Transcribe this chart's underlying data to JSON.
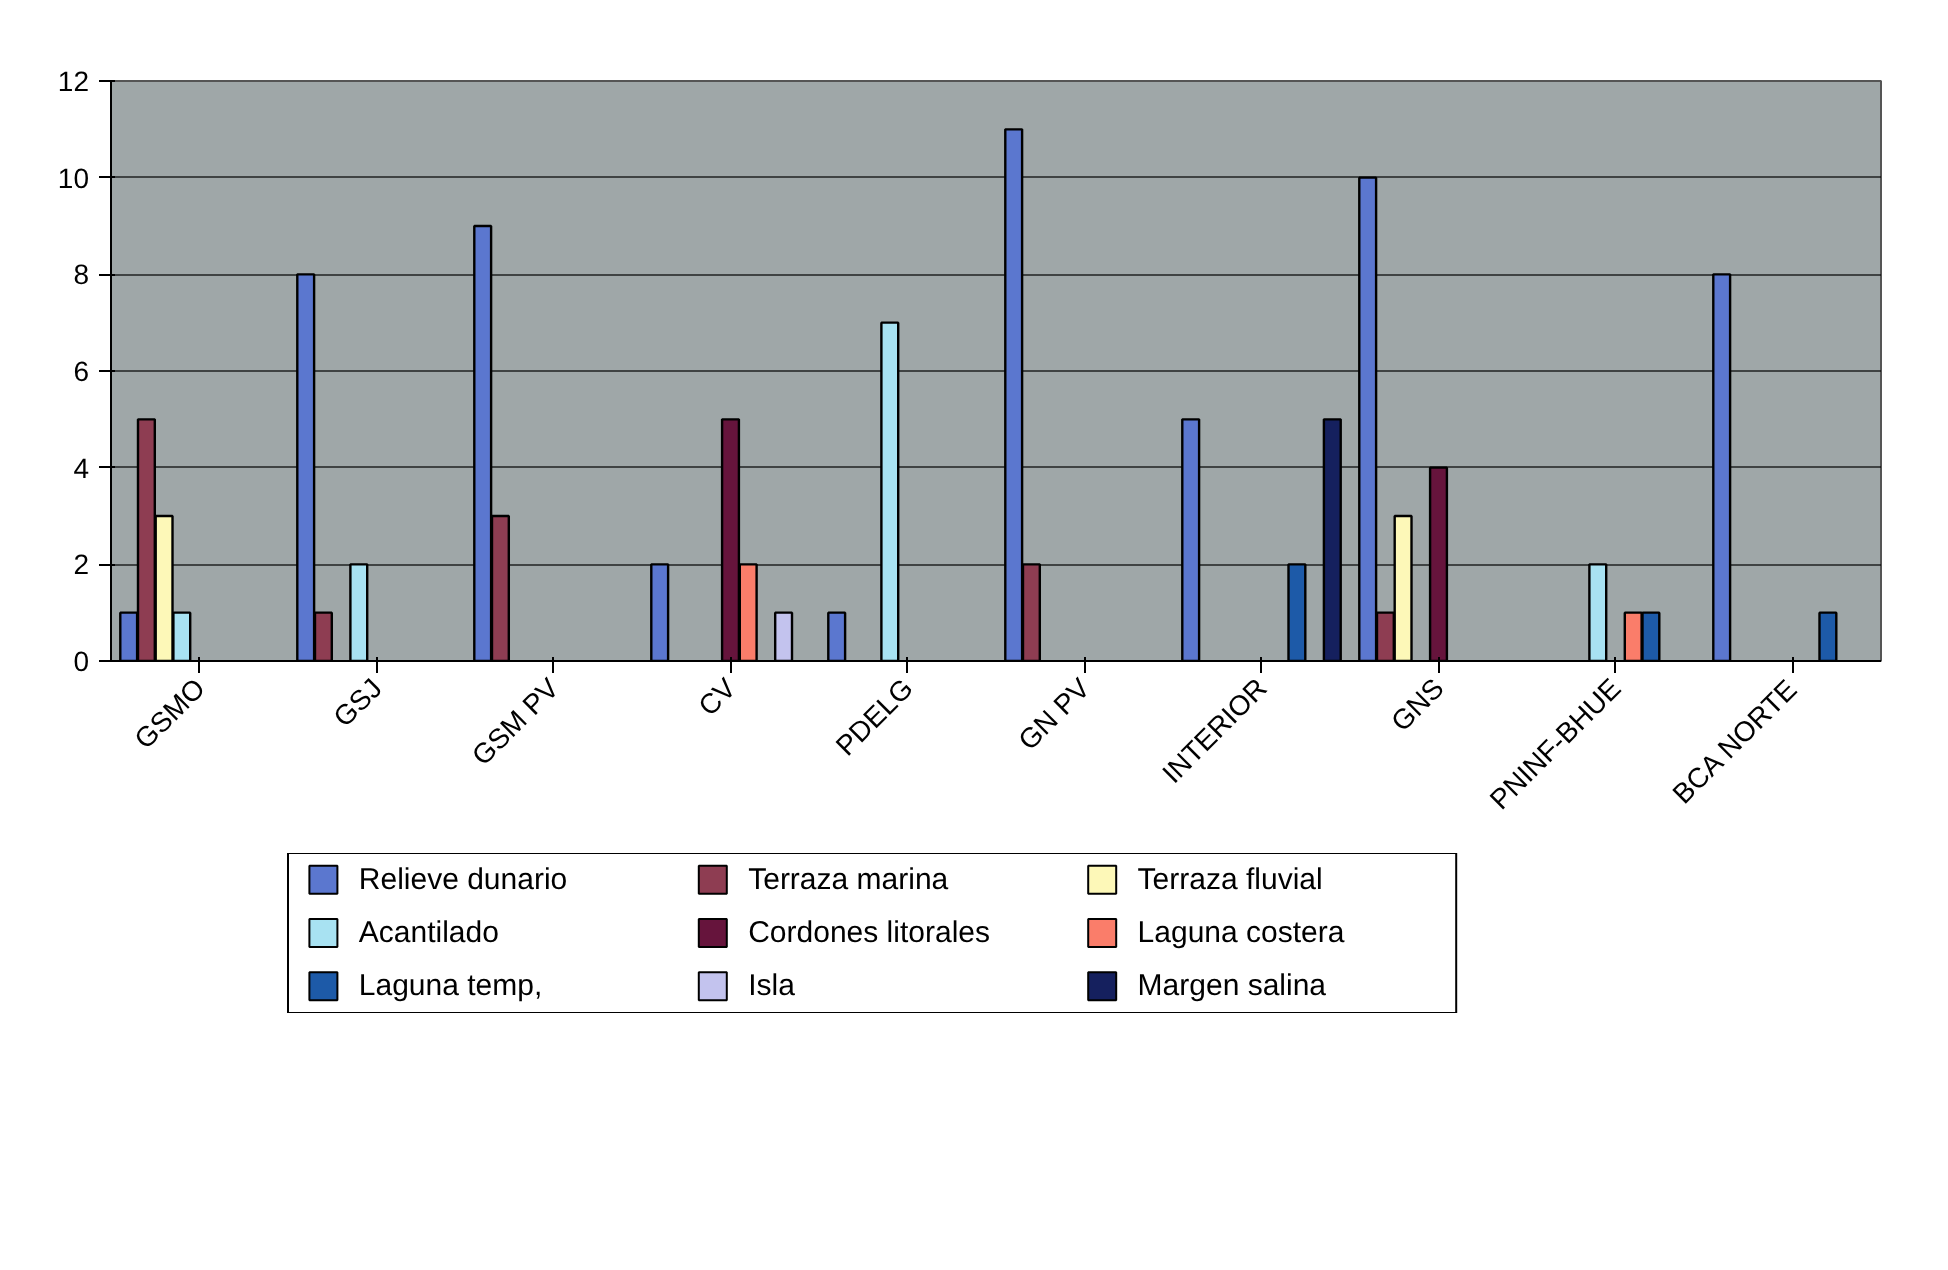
{
  "chart_data": {
    "type": "bar",
    "categories": [
      "GSMO",
      "GSJ",
      "GSM PV",
      "CV",
      "PDELG",
      "GN PV",
      "INTERIOR",
      "GNS",
      "PNINF-BHUE",
      "BCA NORTE"
    ],
    "series": [
      {
        "name": "Relieve dunario",
        "color": "#5b77cf",
        "values": [
          1,
          8,
          9,
          2,
          1,
          11,
          5,
          10,
          null,
          8
        ]
      },
      {
        "name": "Terraza marina",
        "color": "#8e3d52",
        "values": [
          5,
          1,
          3,
          null,
          null,
          2,
          null,
          1,
          null,
          null
        ]
      },
      {
        "name": "Terraza fluvial",
        "color": "#fdf8b8",
        "values": [
          3,
          null,
          null,
          null,
          null,
          null,
          null,
          3,
          null,
          null
        ]
      },
      {
        "name": "Acantilado",
        "color": "#a8e2f2",
        "values": [
          1,
          2,
          null,
          null,
          7,
          null,
          null,
          null,
          2,
          null
        ]
      },
      {
        "name": "Cordones litorales",
        "color": "#66143c",
        "values": [
          null,
          null,
          null,
          5,
          null,
          null,
          null,
          4,
          null,
          null
        ]
      },
      {
        "name": "Laguna costera",
        "color": "#fa7d6a",
        "values": [
          null,
          null,
          null,
          2,
          null,
          null,
          null,
          null,
          1,
          null
        ]
      },
      {
        "name": "Laguna temp,",
        "color": "#1d5aa8",
        "values": [
          null,
          null,
          null,
          null,
          null,
          null,
          2,
          null,
          1,
          1
        ]
      },
      {
        "name": "Isla",
        "color": "#c3c3ee",
        "values": [
          null,
          null,
          null,
          1,
          null,
          null,
          null,
          null,
          null,
          null
        ]
      },
      {
        "name": "Margen salina",
        "color": "#15205e",
        "values": [
          null,
          null,
          null,
          null,
          null,
          null,
          5,
          null,
          null,
          null
        ]
      }
    ],
    "ylim": [
      0,
      12
    ],
    "yticks": [
      0,
      2,
      4,
      6,
      8,
      10,
      12
    ],
    "grid": "y",
    "legend": "bottom"
  }
}
